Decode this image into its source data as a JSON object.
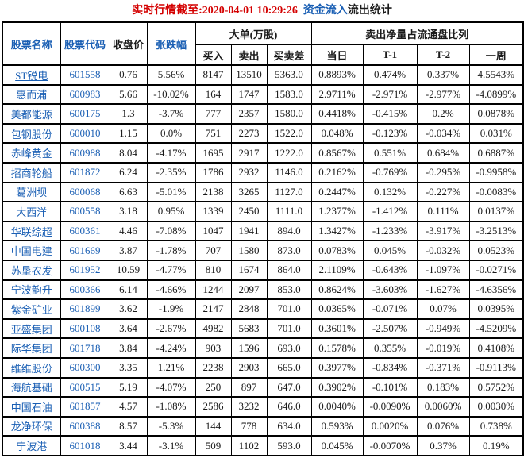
{
  "colors": {
    "title_red": "#d40000",
    "link_blue": "#1a5fb4",
    "text_dark": "#1a1a1a",
    "border_color": "#000000"
  },
  "title_parts": {
    "time": "实时行情截至:2020-04-01 10:29:26",
    "inflow": "资金流入",
    "rest": "流出统计"
  },
  "chart_data": {
    "type": "table",
    "title": "实时行情截至:2020-04-01 10:29:26 资金流入流出统计",
    "columns": [
      "股票名称",
      "股票代码",
      "收盘价",
      "张跌幅",
      "买入",
      "卖出",
      "买卖差",
      "当日",
      "T-1",
      "T-2",
      "一周"
    ],
    "groups": [
      {
        "label": "大单(万股)",
        "columns": [
          "买入",
          "卖出",
          "买卖差"
        ]
      },
      {
        "label": "卖出净量占流通盘比列",
        "columns": [
          "当日",
          "T-1",
          "T-2",
          "一周"
        ]
      }
    ],
    "rows": [
      {
        "name": "ST锐电",
        "code": "601558",
        "close": "0.76",
        "change": "5.56%",
        "buy": "8147",
        "sell": "13510",
        "diff": "5363.0",
        "day": "0.8893%",
        "t1": "0.474%",
        "t2": "0.337%",
        "week": "4.5543%",
        "link": true
      },
      {
        "name": "惠而浦",
        "code": "600983",
        "close": "5.66",
        "change": "-10.02%",
        "buy": "164",
        "sell": "1747",
        "diff": "1583.0",
        "day": "2.9711%",
        "t1": "-2.971%",
        "t2": "-2.977%",
        "week": "-4.0899%"
      },
      {
        "name": "美都能源",
        "code": "600175",
        "close": "1.3",
        "change": "-3.7%",
        "buy": "777",
        "sell": "2357",
        "diff": "1580.0",
        "day": "0.4418%",
        "t1": "-0.415%",
        "t2": "0.2%",
        "week": "0.0878%"
      },
      {
        "name": "包钢股份",
        "code": "600010",
        "close": "1.15",
        "change": "0.0%",
        "buy": "751",
        "sell": "2273",
        "diff": "1522.0",
        "day": "0.048%",
        "t1": "-0.123%",
        "t2": "-0.034%",
        "week": "0.031%"
      },
      {
        "name": "赤峰黄金",
        "code": "600988",
        "close": "8.04",
        "change": "-4.17%",
        "buy": "1695",
        "sell": "2917",
        "diff": "1222.0",
        "day": "0.8567%",
        "t1": "0.551%",
        "t2": "0.684%",
        "week": "0.6887%"
      },
      {
        "name": "招商轮船",
        "code": "601872",
        "close": "6.24",
        "change": "-2.35%",
        "buy": "1786",
        "sell": "2932",
        "diff": "1146.0",
        "day": "0.2162%",
        "t1": "-0.769%",
        "t2": "-0.295%",
        "week": "-0.9958%"
      },
      {
        "name": "葛洲坝",
        "code": "600068",
        "close": "6.63",
        "change": "-5.01%",
        "buy": "2138",
        "sell": "3265",
        "diff": "1127.0",
        "day": "0.2447%",
        "t1": "0.132%",
        "t2": "-0.227%",
        "week": "-0.0083%"
      },
      {
        "name": "大西洋",
        "code": "600558",
        "close": "3.18",
        "change": "0.95%",
        "buy": "1339",
        "sell": "2450",
        "diff": "1111.0",
        "day": "1.2377%",
        "t1": "-1.412%",
        "t2": "0.111%",
        "week": "0.0137%"
      },
      {
        "name": "华联综超",
        "code": "600361",
        "close": "4.46",
        "change": "-7.08%",
        "buy": "1047",
        "sell": "1941",
        "diff": "894.0",
        "day": "1.3427%",
        "t1": "-1.233%",
        "t2": "-3.917%",
        "week": "-3.2513%"
      },
      {
        "name": "中国电建",
        "code": "601669",
        "close": "3.87",
        "change": "-1.78%",
        "buy": "707",
        "sell": "1580",
        "diff": "873.0",
        "day": "0.0783%",
        "t1": "0.045%",
        "t2": "-0.032%",
        "week": "0.0523%"
      },
      {
        "name": "苏垦农发",
        "code": "601952",
        "close": "10.59",
        "change": "-4.77%",
        "buy": "810",
        "sell": "1674",
        "diff": "864.0",
        "day": "2.1109%",
        "t1": "-0.643%",
        "t2": "-1.097%",
        "week": "-0.0271%"
      },
      {
        "name": "宁波韵升",
        "code": "600366",
        "close": "6.14",
        "change": "-4.66%",
        "buy": "1244",
        "sell": "2097",
        "diff": "853.0",
        "day": "0.8624%",
        "t1": "-3.603%",
        "t2": "-1.627%",
        "week": "-4.6356%"
      },
      {
        "name": "紫金矿业",
        "code": "601899",
        "close": "3.62",
        "change": "-1.9%",
        "buy": "2147",
        "sell": "2848",
        "diff": "701.0",
        "day": "0.0365%",
        "t1": "-0.071%",
        "t2": "0.07%",
        "week": "0.0395%"
      },
      {
        "name": "亚盛集团",
        "code": "600108",
        "close": "3.64",
        "change": "-2.67%",
        "buy": "4982",
        "sell": "5683",
        "diff": "701.0",
        "day": "0.3601%",
        "t1": "-2.507%",
        "t2": "-0.949%",
        "week": "-4.5209%"
      },
      {
        "name": "际华集团",
        "code": "601718",
        "close": "3.84",
        "change": "-4.24%",
        "buy": "903",
        "sell": "1596",
        "diff": "693.0",
        "day": "0.1578%",
        "t1": "0.355%",
        "t2": "-0.019%",
        "week": "0.4108%"
      },
      {
        "name": "维维股份",
        "code": "600300",
        "close": "3.35",
        "change": "1.21%",
        "buy": "2238",
        "sell": "2903",
        "diff": "665.0",
        "day": "0.3977%",
        "t1": "-0.834%",
        "t2": "-0.371%",
        "week": "-0.9113%"
      },
      {
        "name": "海航基础",
        "code": "600515",
        "close": "5.19",
        "change": "-4.07%",
        "buy": "250",
        "sell": "897",
        "diff": "647.0",
        "day": "0.3902%",
        "t1": "-0.101%",
        "t2": "0.183%",
        "week": "0.5752%"
      },
      {
        "name": "中国石油",
        "code": "601857",
        "close": "4.57",
        "change": "-1.08%",
        "buy": "2586",
        "sell": "3232",
        "diff": "646.0",
        "day": "0.0040%",
        "t1": "-0.0090%",
        "t2": "0.0060%",
        "week": "0.0030%"
      },
      {
        "name": "龙净环保",
        "code": "600388",
        "close": "8.57",
        "change": "-5.3%",
        "buy": "144",
        "sell": "778",
        "diff": "634.0",
        "day": "0.593%",
        "t1": "0.0020%",
        "t2": "0.076%",
        "week": "0.738%"
      },
      {
        "name": "宁波港",
        "code": "601018",
        "close": "3.44",
        "change": "-3.1%",
        "buy": "509",
        "sell": "1102",
        "diff": "593.0",
        "day": "0.045%",
        "t1": "-0.0070%",
        "t2": "0.37%",
        "week": "0.19%"
      }
    ]
  }
}
